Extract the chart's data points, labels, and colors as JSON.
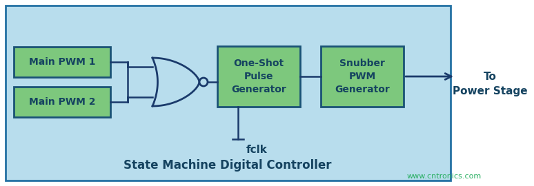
{
  "bg_outer": "#ffffff",
  "bg_inner": "#b8dded",
  "box_fill": "#7dc87d",
  "box_edge": "#1a5276",
  "outer_box_edge": "#2471a3",
  "text_color_box": "#154360",
  "text_color_label": "#154360",
  "text_color_title": "#154360",
  "text_color_watermark": "#27ae60",
  "arrow_color": "#1a3a6b",
  "pwm1_label": "Main PWM 1",
  "pwm2_label": "Main PWM 2",
  "oneshot_label": "One-Shot\nPulse\nGenerator",
  "snubber_label": "Snubber\nPWM\nGenerator",
  "fclk_label": "fclk",
  "to_label": "To\nPower Stage",
  "title": "State Machine Digital Controller",
  "watermark": "www.cntronics.com",
  "fig_width": 7.74,
  "fig_height": 2.7
}
